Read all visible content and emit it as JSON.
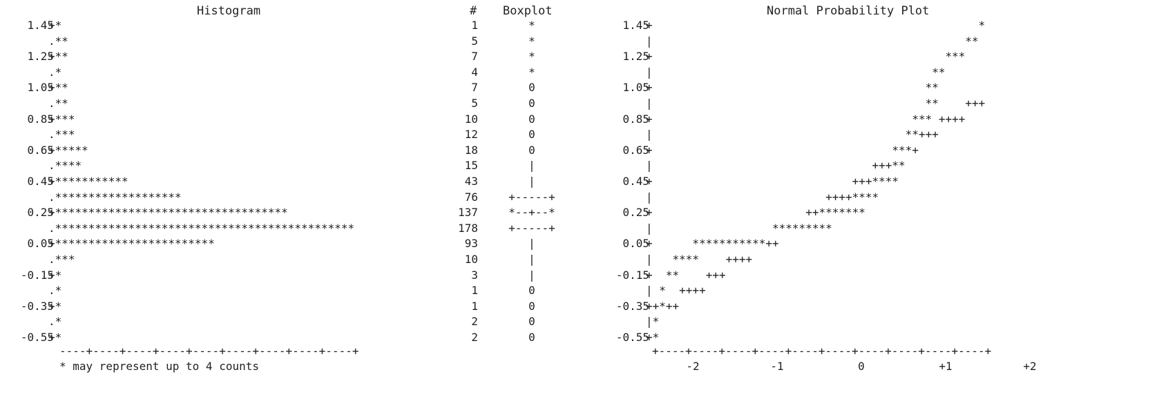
{
  "chart_data": [
    {
      "type": "bar",
      "title": "Histogram",
      "orientation": "horizontal",
      "ylabels": [
        "1.45",
        "1.25",
        "1.05",
        "0.85",
        "0.65",
        "0.45",
        "0.25",
        "0.05",
        "-0.15",
        "-0.35",
        "-0.55"
      ],
      "bins": [
        1.45,
        1.35,
        1.25,
        1.15,
        1.05,
        0.95,
        0.85,
        0.75,
        0.65,
        0.55,
        0.45,
        0.35,
        0.25,
        0.15,
        0.05,
        -0.05,
        -0.15,
        -0.25,
        -0.35,
        -0.45,
        -0.55
      ],
      "counts": [
        1,
        5,
        7,
        4,
        7,
        5,
        10,
        12,
        18,
        15,
        43,
        76,
        137,
        178,
        93,
        10,
        3,
        1,
        1,
        2,
        2
      ],
      "stars": [
        1,
        2,
        2,
        1,
        2,
        2,
        3,
        3,
        5,
        4,
        11,
        19,
        35,
        45,
        24,
        3,
        1,
        1,
        1,
        1,
        1
      ],
      "footnote": "* may represent up to 4 counts"
    },
    {
      "type": "table",
      "title": "Boxplot",
      "count_header": "#",
      "counts": [
        "1",
        "5",
        "7",
        "4",
        "7",
        "5",
        "10",
        "12",
        "18",
        "15",
        "43",
        "76",
        "137",
        "178",
        "93",
        "10",
        "3",
        "1",
        "1",
        "2",
        "2"
      ],
      "symbols": [
        "*",
        "*",
        "*",
        "*",
        "0",
        "0",
        "0",
        "0",
        "0",
        "|",
        "|",
        "+-----+",
        "*--+--*",
        "+-----+",
        "|",
        "|",
        "|",
        "0",
        "0",
        "0",
        "0"
      ]
    },
    {
      "type": "scatter",
      "title": "Normal Probability Plot",
      "ylabels": [
        "1.45",
        "1.25",
        "1.05",
        "0.85",
        "0.65",
        "0.45",
        "0.25",
        "0.05",
        "-0.15",
        "-0.35",
        "-0.55"
      ],
      "xlabels": [
        "-2",
        "-1",
        "0",
        "+1",
        "+2"
      ],
      "ylim": [
        -0.55,
        1.45
      ],
      "xlim": [
        -2.5,
        2.5
      ],
      "rows": [
        "                                                 *",
        "                                               **",
        "                                            ***",
        "                                          **",
        "                                         **",
        "                                         **    +++",
        "                                       *** ++++",
        "                                      **+++",
        "                                    ***+",
        "                                 +++**",
        "                              +++****",
        "                          ++++****",
        "                       ++*******",
        "                  *********",
        "      ***********++",
        "   ****    ++++",
        "  **    +++",
        " *  ++++",
        "+*++",
        "*",
        "*"
      ]
    }
  ]
}
